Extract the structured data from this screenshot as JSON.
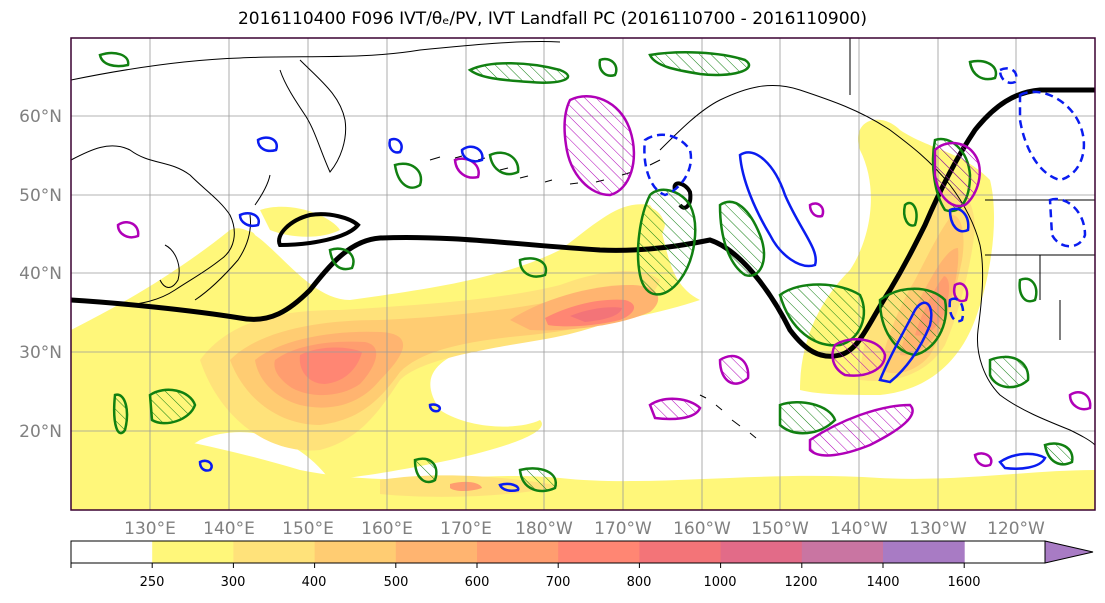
{
  "title": "2016110400 F096 IVT/θₑ/PV, IVT Landfall PC (2016110700 - 2016110900)",
  "map": {
    "lat_labels": [
      "60°N",
      "50°N",
      "40°N",
      "30°N",
      "20°N"
    ],
    "lon_labels": [
      "130°E",
      "140°E",
      "150°E",
      "160°E",
      "170°E",
      "180°W",
      "170°W",
      "160°W",
      "150°W",
      "140°W",
      "130°W",
      "120°W"
    ]
  },
  "colorbar": {
    "levels": [
      "250",
      "300",
      "400",
      "500",
      "600",
      "700",
      "800",
      "1000",
      "1200",
      "1400",
      "1600"
    ],
    "colors": [
      "#ffffff",
      "#fff77a",
      "#ffe27a",
      "#ffcc72",
      "#ffb470",
      "#ff9d6f",
      "#ff8673",
      "#f37478",
      "#e26b88",
      "#c975a2",
      "#a87bc4"
    ]
  },
  "contour_colors": {
    "front_line": "#000000",
    "green": "#118011",
    "magenta": "#b000b8",
    "blue": "#0a1cf0"
  }
}
